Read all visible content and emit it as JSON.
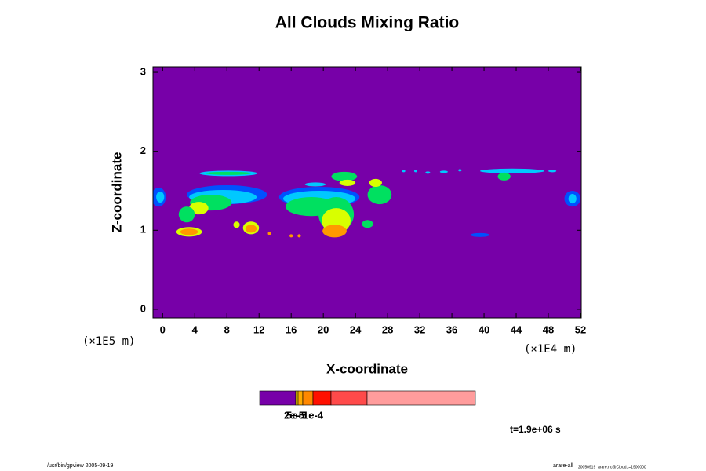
{
  "chart_data": {
    "type": "contour",
    "title": "All Clouds Mixing Ratio",
    "x_label": "X-coordinate",
    "y_label": "Z-coordinate",
    "x_unit": "(×1E4 m)",
    "y_unit": "(×1E5 m)",
    "xlim": [
      -1.2,
      52.1
    ],
    "ylim": [
      -0.11,
      3.07
    ],
    "xticks": [
      0,
      4,
      8,
      12,
      16,
      20,
      24,
      28,
      32,
      36,
      40,
      44,
      48,
      52
    ],
    "yticks": [
      0,
      1,
      2,
      3
    ],
    "background_color": "#7700a8",
    "level_colors": [
      "#0050ff",
      "#00c8ff",
      "#00e060",
      "#d8ff00",
      "#ff9900",
      "#ff4a00"
    ],
    "blobs": [
      {
        "x": -0.5,
        "z": 1.42,
        "rx": 0.9,
        "rz": 0.12,
        "level": 0
      },
      {
        "x": -0.3,
        "z": 1.42,
        "rx": 0.5,
        "rz": 0.07,
        "level": 1
      },
      {
        "x": 8.0,
        "z": 1.45,
        "rx": 5.0,
        "rz": 0.12,
        "level": 0
      },
      {
        "x": 7.5,
        "z": 1.42,
        "rx": 4.2,
        "rz": 0.09,
        "level": 1
      },
      {
        "x": 6.0,
        "z": 1.35,
        "rx": 2.6,
        "rz": 0.1,
        "level": 2
      },
      {
        "x": 4.5,
        "z": 1.28,
        "rx": 1.2,
        "rz": 0.08,
        "level": 3
      },
      {
        "x": 3.0,
        "z": 1.2,
        "rx": 1.0,
        "rz": 0.1,
        "level": 2
      },
      {
        "x": 3.3,
        "z": 0.98,
        "rx": 1.6,
        "rz": 0.06,
        "level": 3
      },
      {
        "x": 3.3,
        "z": 0.98,
        "rx": 1.1,
        "rz": 0.04,
        "level": 4
      },
      {
        "x": 8.2,
        "z": 1.72,
        "rx": 3.6,
        "rz": 0.035,
        "level": 1
      },
      {
        "x": 8.2,
        "z": 1.72,
        "rx": 2.8,
        "rz": 0.02,
        "level": 2
      },
      {
        "x": 11.0,
        "z": 1.03,
        "rx": 1.0,
        "rz": 0.08,
        "level": 3
      },
      {
        "x": 11.0,
        "z": 1.02,
        "rx": 0.7,
        "rz": 0.05,
        "level": 4
      },
      {
        "x": 9.2,
        "z": 1.07,
        "rx": 0.4,
        "rz": 0.04,
        "level": 3
      },
      {
        "x": 19.5,
        "z": 1.42,
        "rx": 5.0,
        "rz": 0.13,
        "level": 0
      },
      {
        "x": 19.5,
        "z": 1.4,
        "rx": 4.5,
        "rz": 0.1,
        "level": 1
      },
      {
        "x": 18.5,
        "z": 1.3,
        "rx": 3.2,
        "rz": 0.12,
        "level": 2
      },
      {
        "x": 21.6,
        "z": 1.2,
        "rx": 2.2,
        "rz": 0.22,
        "level": 2
      },
      {
        "x": 21.6,
        "z": 1.12,
        "rx": 1.8,
        "rz": 0.16,
        "level": 3
      },
      {
        "x": 21.4,
        "z": 0.99,
        "rx": 1.5,
        "rz": 0.08,
        "level": 4
      },
      {
        "x": 22.6,
        "z": 1.68,
        "rx": 1.6,
        "rz": 0.06,
        "level": 2
      },
      {
        "x": 23.0,
        "z": 1.6,
        "rx": 1.0,
        "rz": 0.04,
        "level": 3
      },
      {
        "x": 19.0,
        "z": 1.58,
        "rx": 1.3,
        "rz": 0.025,
        "level": 1
      },
      {
        "x": 27.0,
        "z": 1.45,
        "rx": 1.5,
        "rz": 0.12,
        "level": 2
      },
      {
        "x": 26.5,
        "z": 1.6,
        "rx": 0.8,
        "rz": 0.05,
        "level": 3
      },
      {
        "x": 25.5,
        "z": 1.08,
        "rx": 0.7,
        "rz": 0.05,
        "level": 2
      },
      {
        "x": 16.0,
        "z": 0.93,
        "rx": 0.2,
        "rz": 0.02,
        "level": 4
      },
      {
        "x": 17.0,
        "z": 0.93,
        "rx": 0.2,
        "rz": 0.02,
        "level": 4
      },
      {
        "x": 13.3,
        "z": 0.96,
        "rx": 0.2,
        "rz": 0.02,
        "level": 4
      },
      {
        "x": 39.5,
        "z": 0.94,
        "rx": 1.2,
        "rz": 0.025,
        "level": 0
      },
      {
        "x": 43.5,
        "z": 1.75,
        "rx": 4.0,
        "rz": 0.03,
        "level": 1
      },
      {
        "x": 42.5,
        "z": 1.68,
        "rx": 0.8,
        "rz": 0.05,
        "level": 2
      },
      {
        "x": 51.0,
        "z": 1.4,
        "rx": 1.0,
        "rz": 0.1,
        "level": 0
      },
      {
        "x": 51.0,
        "z": 1.4,
        "rx": 0.5,
        "rz": 0.06,
        "level": 1
      },
      {
        "x": 30.0,
        "z": 1.75,
        "rx": 0.2,
        "rz": 0.015,
        "level": 1
      },
      {
        "x": 31.5,
        "z": 1.75,
        "rx": 0.2,
        "rz": 0.015,
        "level": 1
      },
      {
        "x": 33.0,
        "z": 1.73,
        "rx": 0.3,
        "rz": 0.015,
        "level": 1
      },
      {
        "x": 35.0,
        "z": 1.74,
        "rx": 0.5,
        "rz": 0.015,
        "level": 1
      },
      {
        "x": 37.0,
        "z": 1.76,
        "rx": 0.2,
        "rz": 0.015,
        "level": 1
      },
      {
        "x": 48.5,
        "z": 1.75,
        "rx": 0.5,
        "rz": 0.015,
        "level": 1
      }
    ],
    "colorbar_labels": [
      "2e-5",
      "5e-5",
      "1e-4"
    ],
    "time_label": "t=1.9e+06 s",
    "footer_left": "/usr/bin/gpview 2005-09-19",
    "footer_right": "arare-all",
    "footer_right_sub": "20050919_arare.nc@Cloud,t=1900000"
  }
}
